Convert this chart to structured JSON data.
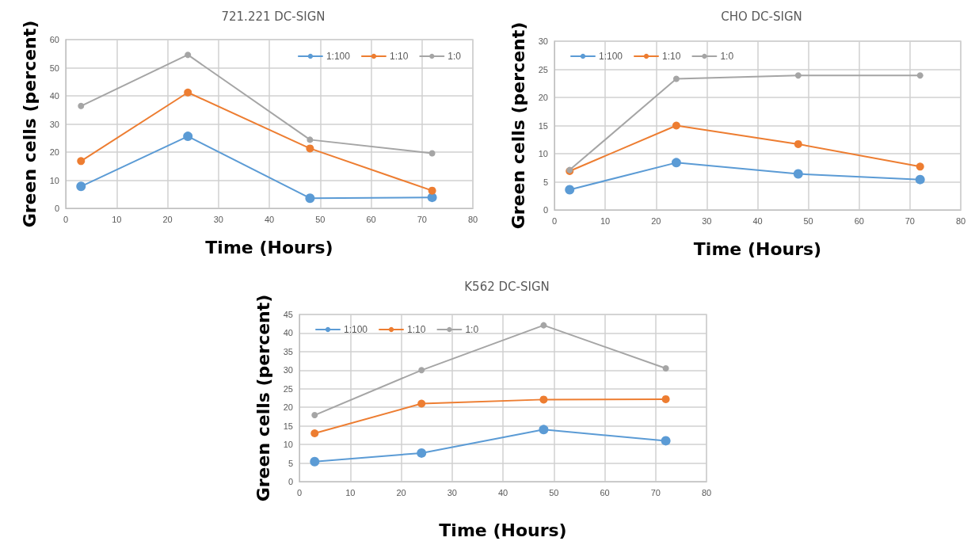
{
  "chart_data": [
    {
      "type": "line",
      "title": "721.221 DC-SIGN",
      "xlabel": "Time (Hours)",
      "ylabel": "Green cells (percent)",
      "x": [
        3,
        24,
        48,
        72
      ],
      "series": [
        {
          "name": "1:100",
          "color": "#5b9bd5",
          "values": [
            7.8,
            25.6,
            3.6,
            3.9
          ]
        },
        {
          "name": "1:10",
          "color": "#ed7d31",
          "values": [
            16.8,
            41.2,
            21.3,
            6.3
          ]
        },
        {
          "name": "1:0",
          "color": "#a5a5a5",
          "values": [
            36.4,
            54.6,
            24.4,
            19.6
          ]
        }
      ],
      "xlim": [
        0,
        80
      ],
      "xticks": [
        0,
        10,
        20,
        30,
        40,
        50,
        60,
        70,
        80
      ],
      "ylim": [
        0,
        60
      ],
      "yticks": [
        0,
        10,
        20,
        30,
        40,
        50,
        60
      ],
      "grid": true,
      "legend": "top right",
      "marker": "circle",
      "line_style": "solid"
    },
    {
      "type": "line",
      "title": "CHO DC-SIGN",
      "xlabel": "Time (Hours)",
      "ylabel": "Green cells (percent)",
      "x": [
        3,
        24,
        48,
        72
      ],
      "series": [
        {
          "name": "1:100",
          "color": "#5b9bd5",
          "values": [
            3.6,
            8.4,
            6.4,
            5.4
          ]
        },
        {
          "name": "1:10",
          "color": "#ed7d31",
          "values": [
            6.9,
            15.0,
            11.7,
            7.7
          ]
        },
        {
          "name": "1:0",
          "color": "#a5a5a5",
          "values": [
            7.1,
            23.3,
            23.9,
            23.9
          ]
        }
      ],
      "xlim": [
        0,
        80
      ],
      "xticks": [
        0,
        10,
        20,
        30,
        40,
        50,
        60,
        70,
        80
      ],
      "ylim": [
        0,
        30
      ],
      "yticks": [
        0,
        5,
        10,
        15,
        20,
        25,
        30
      ],
      "grid": true,
      "legend": "top left",
      "marker": "circle",
      "line_style": "solid"
    },
    {
      "type": "line",
      "title": "K562 DC-SIGN",
      "xlabel": "Time (Hours)",
      "ylabel": "Green cells (percent)",
      "x": [
        3,
        24,
        48,
        72
      ],
      "series": [
        {
          "name": "1:100",
          "color": "#5b9bd5",
          "values": [
            5.4,
            7.7,
            14.0,
            11.0
          ]
        },
        {
          "name": "1:10",
          "color": "#ed7d31",
          "values": [
            13.0,
            21.0,
            22.1,
            22.2
          ]
        },
        {
          "name": "1:0",
          "color": "#a5a5a5",
          "values": [
            17.9,
            30.0,
            42.1,
            30.5
          ]
        }
      ],
      "xlim": [
        0,
        80
      ],
      "xticks": [
        0,
        10,
        20,
        30,
        40,
        50,
        60,
        70,
        80
      ],
      "ylim": [
        0,
        45
      ],
      "yticks": [
        0,
        5,
        10,
        15,
        20,
        25,
        30,
        35,
        40,
        45
      ],
      "grid": true,
      "legend": "top left",
      "marker": "circle",
      "line_style": "solid"
    }
  ]
}
